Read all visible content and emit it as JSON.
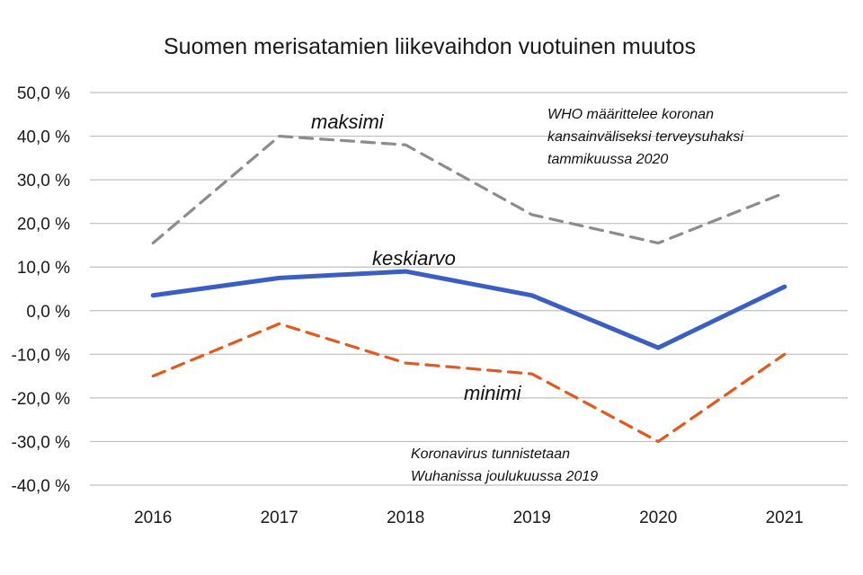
{
  "chart_data": {
    "type": "line",
    "title": "Suomen merisatamien liikevaihdon vuotuinen muutos",
    "xlabel": "",
    "ylabel": "",
    "categories": [
      "2016",
      "2017",
      "2018",
      "2019",
      "2020",
      "2021"
    ],
    "ylim": [
      -40,
      50
    ],
    "yticks": [
      50,
      40,
      30,
      20,
      10,
      0,
      -10,
      -20,
      -30,
      -40
    ],
    "ytick_labels": [
      "50,0 %",
      "40,0 %",
      "30,0 %",
      "20,0 %",
      "10,0 %",
      "0,0 %",
      "-10,0 %",
      "-20,0 %",
      "-30,0 %",
      "-40,0 %"
    ],
    "grid": true,
    "legend": "none",
    "series": [
      {
        "name": "maksimi",
        "values": [
          15.5,
          40,
          38,
          22,
          15.5,
          27
        ],
        "color": "#8c8c8c",
        "dash": "dashed"
      },
      {
        "name": "keskiarvo",
        "values": [
          3.5,
          7.5,
          9,
          3.5,
          -8.5,
          5.5
        ],
        "color": "#3a5fc4",
        "dash": "solid"
      },
      {
        "name": "minimi",
        "values": [
          -15,
          -3,
          -12,
          -14.5,
          -30,
          -10
        ],
        "color": "#e8571a",
        "dash": "dashed"
      }
    ],
    "annotations": [
      {
        "lines": [
          "WHO määrittelee koronan",
          "kansainväliseksi terveysuhaksi",
          "tammikuussa 2020"
        ]
      },
      {
        "lines": [
          "Koronavirus tunnistetaan",
          "Wuhanissa joulukuussa 2019"
        ]
      }
    ]
  }
}
